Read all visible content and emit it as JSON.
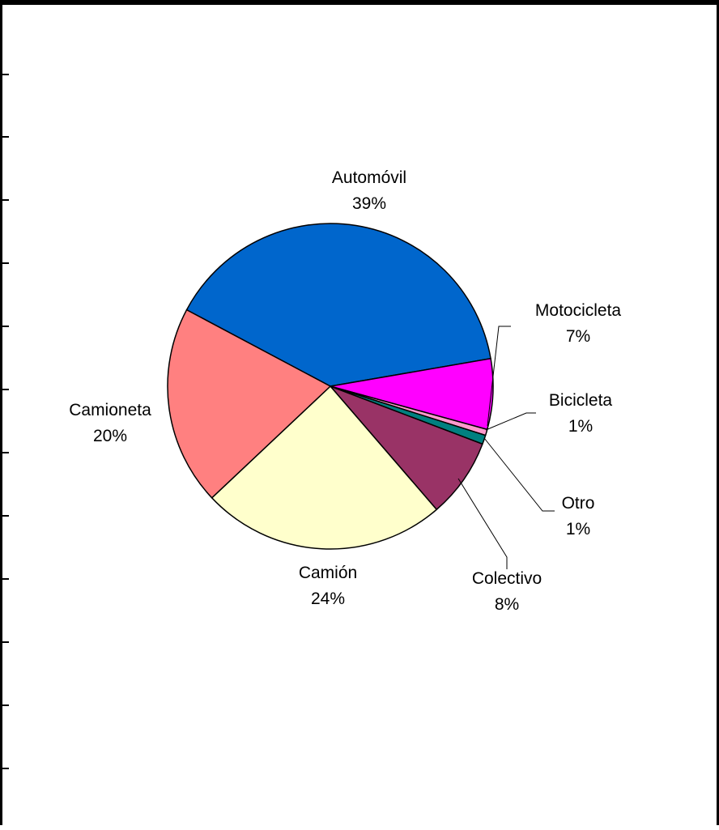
{
  "chart_data": {
    "type": "pie",
    "title": "",
    "start_angle_deg": 152,
    "direction": "clockwise",
    "slices": [
      {
        "label": "Automóvil",
        "percent_label": "39%",
        "value": 39.5,
        "color": "#0066CC"
      },
      {
        "label": "Motocicleta",
        "percent_label": "7%",
        "value": 7.0,
        "color": "#FF00FF"
      },
      {
        "label": "Bicicleta",
        "percent_label": "1%",
        "value": 0.6,
        "color": "#FF99CC"
      },
      {
        "label": "Otro",
        "percent_label": "1%",
        "value": 0.9,
        "color": "#008080"
      },
      {
        "label": "Colectivo",
        "percent_label": "8%",
        "value": 7.9,
        "color": "#993366"
      },
      {
        "label": "Camión",
        "percent_label": "24%",
        "value": 24.3,
        "color": "#FFFFCC"
      },
      {
        "label": "Camioneta",
        "percent_label": "20%",
        "value": 19.8,
        "color": "#FF8080"
      }
    ],
    "legend": "none",
    "data_labels": "outside with leader lines"
  }
}
